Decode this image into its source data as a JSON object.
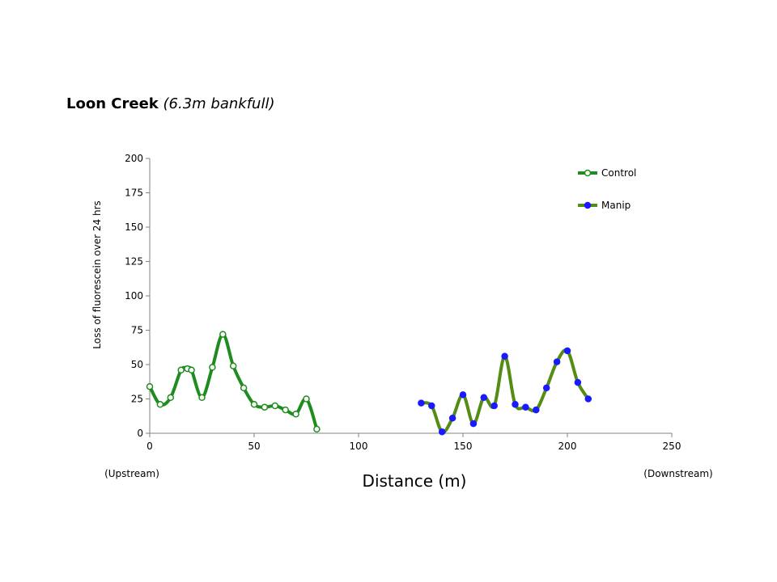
{
  "chart_data": {
    "type": "line",
    "title": "Loon Creek (6.3m bankfull)",
    "title_main": "Loon Creek",
    "title_sub": "(6.3m bankfull)",
    "xlabel": "Distance (m)",
    "ylabel": "Loss of fluorescein over 24 hrs",
    "xlim": [
      0,
      250
    ],
    "ylim": [
      0,
      200
    ],
    "x_ticks": [
      "0",
      "50",
      "100",
      "150",
      "200",
      "250"
    ],
    "y_ticks": [
      "0",
      "25",
      "50",
      "75",
      "100",
      "125",
      "150",
      "175",
      "200"
    ],
    "x_ticks_values": [
      0,
      50,
      100,
      150,
      200,
      250
    ],
    "y_ticks_values": [
      0,
      25,
      50,
      75,
      100,
      125,
      150,
      175,
      200
    ],
    "annotations": {
      "left": "(Upstream)",
      "right": "(Downstream)"
    },
    "grid": false,
    "legend": "top-right",
    "series": [
      {
        "name": "Control",
        "line_color": "#1e8c1e",
        "marker_fill": "#ffffff",
        "marker_stroke": "#1e8c1e",
        "points": [
          [
            0,
            34
          ],
          [
            5,
            21
          ],
          [
            10,
            26
          ],
          [
            15,
            46
          ],
          [
            18,
            47
          ],
          [
            20,
            46
          ],
          [
            25,
            26
          ],
          [
            30,
            48
          ],
          [
            35,
            72
          ],
          [
            40,
            49
          ],
          [
            45,
            33
          ],
          [
            50,
            21
          ],
          [
            55,
            19
          ],
          [
            60,
            20
          ],
          [
            65,
            17
          ],
          [
            70,
            14
          ],
          [
            75,
            25
          ],
          [
            80,
            3
          ]
        ]
      },
      {
        "name": "Manip",
        "line_color": "#558c14",
        "marker_fill": "#1a1aff",
        "marker_stroke": "#1a1aff",
        "points": [
          [
            130,
            22
          ],
          [
            135,
            20
          ],
          [
            140,
            1
          ],
          [
            145,
            11
          ],
          [
            150,
            28
          ],
          [
            155,
            7
          ],
          [
            160,
            26
          ],
          [
            165,
            20
          ],
          [
            170,
            56
          ],
          [
            175,
            21
          ],
          [
            180,
            19
          ],
          [
            185,
            17
          ],
          [
            190,
            33
          ],
          [
            195,
            52
          ],
          [
            200,
            60
          ],
          [
            205,
            37
          ],
          [
            210,
            25
          ]
        ]
      }
    ]
  }
}
